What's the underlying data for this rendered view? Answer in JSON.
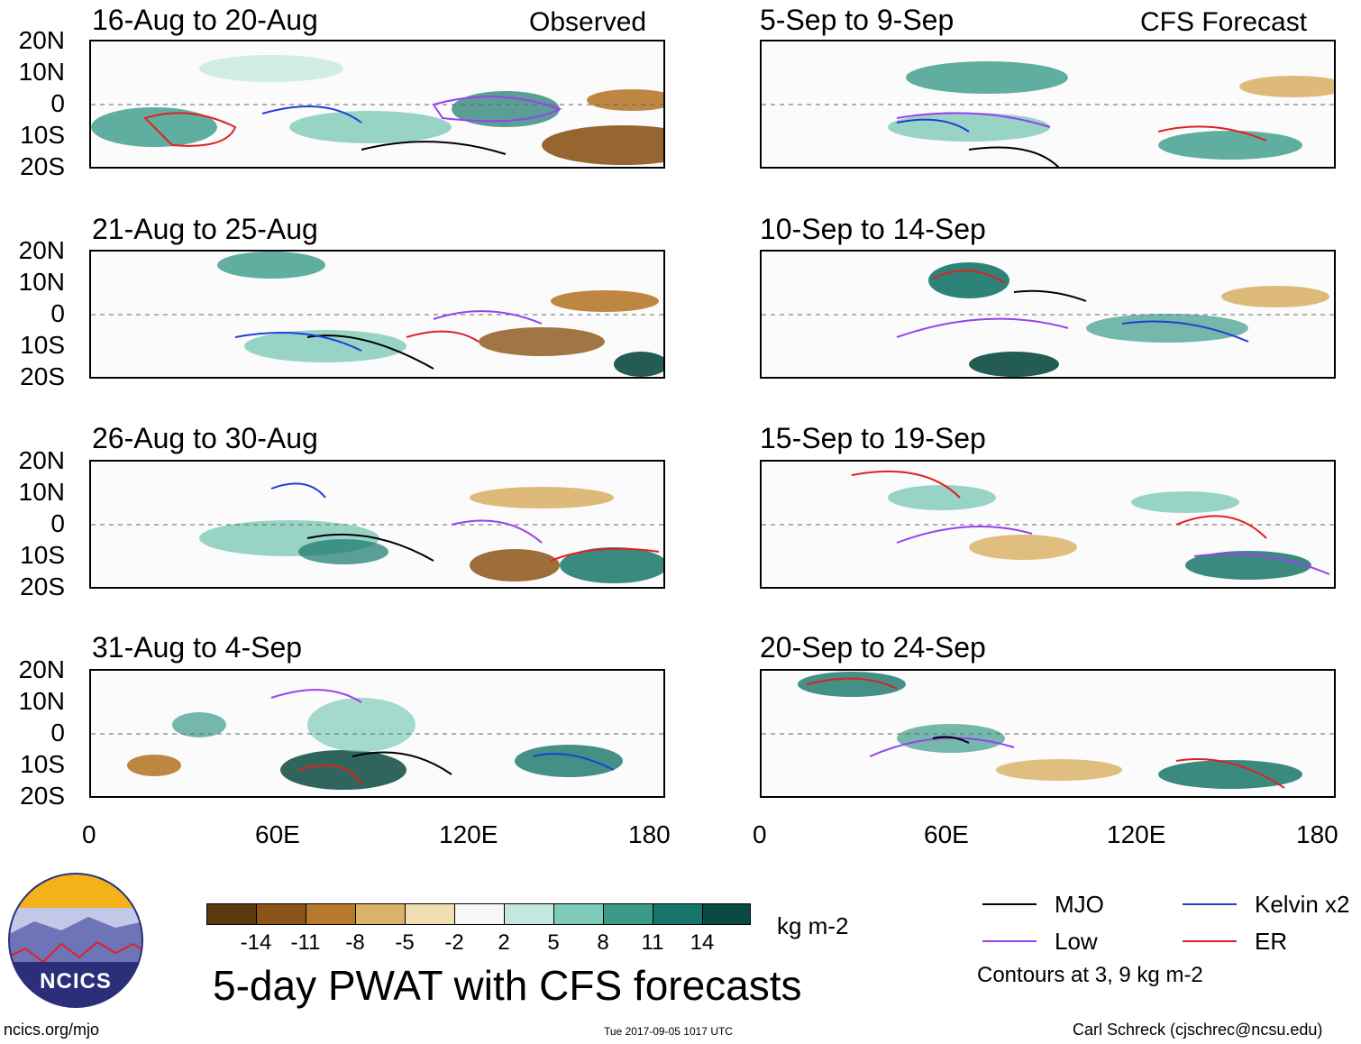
{
  "chart_data": {
    "type": "heatmap",
    "title": "5-day PWAT with CFS forecasts",
    "columns": {
      "observed": {
        "label": "Observed",
        "panels": [
          "16-Aug to 20-Aug",
          "21-Aug to 25-Aug",
          "26-Aug to 30-Aug",
          "31-Aug to 4-Sep"
        ]
      },
      "forecast": {
        "label": "CFS Forecast",
        "panels": [
          "5-Sep to 9-Sep",
          "10-Sep to 14-Sep",
          "15-Sep to 19-Sep",
          "20-Sep to 24-Sep"
        ]
      }
    },
    "y_ticks": [
      "20N",
      "10N",
      "0",
      "10S",
      "20S"
    ],
    "x_ticks": [
      "0",
      "60E",
      "120E",
      "180"
    ],
    "xlim": [
      0,
      180
    ],
    "ylim": [
      -20,
      20
    ],
    "colorbar": {
      "labels": [
        "-14",
        "-11",
        "-8",
        "-5",
        "-2",
        "2",
        "5",
        "8",
        "11",
        "14"
      ],
      "colors": [
        "#5c3a10",
        "#8c5418",
        "#b77a2c",
        "#d9b36a",
        "#f1dfb3",
        "#f7f7f7",
        "#c4e8e0",
        "#7fcab9",
        "#3a9b8a",
        "#17766a",
        "#0b4a40"
      ],
      "units": "kg m-2"
    },
    "legend": {
      "items": [
        {
          "label": "MJO",
          "color": "#000000"
        },
        {
          "label": "Kelvin x2",
          "color": "#1f3fd6"
        },
        {
          "label": "Low",
          "color": "#9b3ff0"
        },
        {
          "label": "ER",
          "color": "#e02020"
        }
      ],
      "note": "Contours at 3, 9 kg m-2"
    }
  },
  "footer": {
    "left": "ncics.org/mjo",
    "center": "Tue 2017-09-05 1017 UTC",
    "right": "Carl Schreck (cjschrec@ncsu.edu)"
  },
  "logo": {
    "text": "NCICS"
  }
}
